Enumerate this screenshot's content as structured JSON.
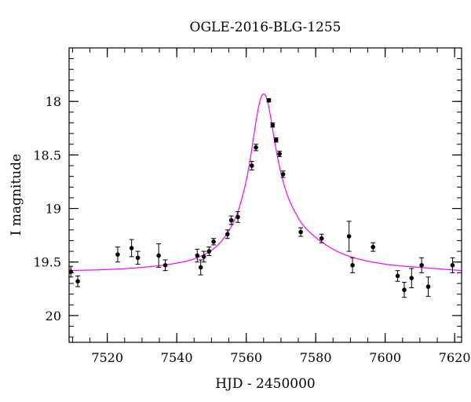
{
  "chart_data": {
    "type": "scatter",
    "title": "OGLE-2016-BLG-1255",
    "xlabel": "HJD - 2450000",
    "ylabel": "I magnitude",
    "xlim": [
      7509,
      7622
    ],
    "ylim": [
      20.25,
      17.5
    ],
    "y_inverted": true,
    "grid": false,
    "x_ticks": [
      7520,
      7540,
      7560,
      7580,
      7600,
      7620
    ],
    "y_ticks": [
      18,
      18.5,
      19,
      19.5,
      20
    ],
    "x_tick_labels": [
      "7520",
      "7540",
      "7560",
      "7580",
      "7600",
      "7620"
    ],
    "y_tick_labels": [
      "18",
      "18.5",
      "19",
      "19.5",
      "20"
    ],
    "series": [
      {
        "kind": "points",
        "color": "#000000",
        "points": [
          {
            "x": 7509.5,
            "y": 19.59,
            "err": 0.05
          },
          {
            "x": 7511.5,
            "y": 19.68,
            "err": 0.05
          },
          {
            "x": 7523.0,
            "y": 19.43,
            "err": 0.07
          },
          {
            "x": 7527.0,
            "y": 19.37,
            "err": 0.08
          },
          {
            "x": 7528.8,
            "y": 19.46,
            "err": 0.06
          },
          {
            "x": 7534.8,
            "y": 19.44,
            "err": 0.11
          },
          {
            "x": 7536.7,
            "y": 19.53,
            "err": 0.05
          },
          {
            "x": 7545.9,
            "y": 19.44,
            "err": 0.06
          },
          {
            "x": 7546.9,
            "y": 19.55,
            "err": 0.07
          },
          {
            "x": 7547.8,
            "y": 19.45,
            "err": 0.05
          },
          {
            "x": 7549.3,
            "y": 19.4,
            "err": 0.04
          },
          {
            "x": 7550.6,
            "y": 19.31,
            "err": 0.03
          },
          {
            "x": 7554.6,
            "y": 19.24,
            "err": 0.04
          },
          {
            "x": 7555.7,
            "y": 19.11,
            "err": 0.04
          },
          {
            "x": 7557.6,
            "y": 19.08,
            "err": 0.05
          },
          {
            "x": 7561.6,
            "y": 18.6,
            "err": 0.04
          },
          {
            "x": 7562.8,
            "y": 18.43,
            "err": 0.03
          },
          {
            "x": 7566.5,
            "y": 17.99,
            "err": 0.015
          },
          {
            "x": 7567.6,
            "y": 18.22,
            "err": 0.02
          },
          {
            "x": 7568.6,
            "y": 18.36,
            "err": 0.02
          },
          {
            "x": 7569.6,
            "y": 18.49,
            "err": 0.025
          },
          {
            "x": 7570.6,
            "y": 18.68,
            "err": 0.03
          },
          {
            "x": 7575.7,
            "y": 19.22,
            "err": 0.04
          },
          {
            "x": 7581.7,
            "y": 19.28,
            "err": 0.04
          },
          {
            "x": 7589.6,
            "y": 19.26,
            "err": 0.14
          },
          {
            "x": 7590.6,
            "y": 19.53,
            "err": 0.07
          },
          {
            "x": 7596.5,
            "y": 19.36,
            "err": 0.04
          },
          {
            "x": 7603.6,
            "y": 19.63,
            "err": 0.05
          },
          {
            "x": 7605.5,
            "y": 19.76,
            "err": 0.07
          },
          {
            "x": 7607.6,
            "y": 19.65,
            "err": 0.09
          },
          {
            "x": 7610.5,
            "y": 19.53,
            "err": 0.07
          },
          {
            "x": 7612.4,
            "y": 19.73,
            "err": 0.09
          },
          {
            "x": 7619.4,
            "y": 19.53,
            "err": 0.07
          }
        ]
      },
      {
        "kind": "model-curve",
        "color": "#ff00ff",
        "x": [
          7509,
          7520,
          7530,
          7540,
          7545,
          7550,
          7553,
          7556,
          7558,
          7560,
          7561,
          7562,
          7563,
          7564,
          7565,
          7566,
          7567,
          7568,
          7569,
          7570,
          7571,
          7572,
          7574,
          7576,
          7580,
          7585,
          7590,
          7600,
          7610,
          7622
        ],
        "y": [
          19.58,
          19.57,
          19.55,
          19.51,
          19.47,
          19.39,
          19.3,
          19.15,
          18.99,
          18.74,
          18.57,
          18.36,
          18.15,
          17.99,
          17.93,
          17.98,
          18.14,
          18.34,
          18.52,
          18.67,
          18.79,
          18.89,
          19.03,
          19.14,
          19.27,
          19.38,
          19.45,
          19.52,
          19.55,
          19.58
        ]
      }
    ]
  }
}
